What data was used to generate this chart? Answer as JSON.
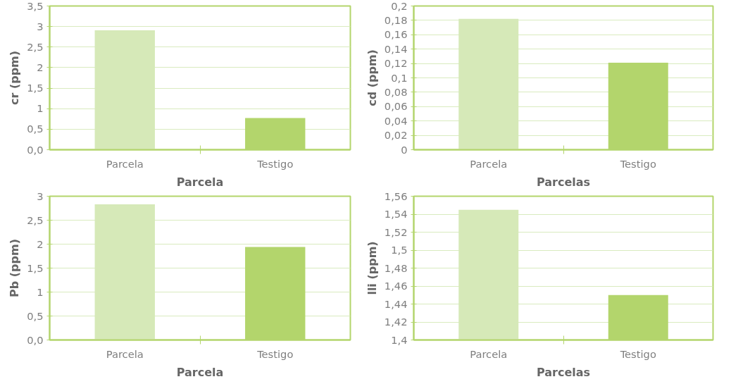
{
  "chart_data": [
    {
      "type": "bar",
      "categories": [
        "Parcela",
        "Testigo"
      ],
      "values": [
        2.91,
        0.77
      ],
      "colors": [
        "#d6e9b8",
        "#b3d56c"
      ],
      "xlabel": "Parcela",
      "ylabel": "cr (ppm)",
      "ylim": [
        0,
        3.5
      ],
      "yticks": [
        {
          "value": 0,
          "label": "0,0"
        },
        {
          "value": 0.5,
          "label": "0,5"
        },
        1,
        {
          "value": 1.5,
          "label": "1,5"
        },
        2,
        {
          "value": 2.5,
          "label": "2,5"
        },
        3,
        {
          "value": 3.5,
          "label": "3,5"
        }
      ],
      "grid": "y"
    },
    {
      "type": "bar",
      "categories": [
        "Parcela",
        "Testigo"
      ],
      "values": [
        0.182,
        0.121
      ],
      "colors": [
        "#d6e9b8",
        "#b3d56c"
      ],
      "xlabel": "Parcelas",
      "ylabel": "cd (ppm)",
      "ylim": [
        0,
        0.2
      ],
      "yticks": [
        0,
        {
          "value": 0.02,
          "label": "0,02"
        },
        {
          "value": 0.04,
          "label": "0,04"
        },
        {
          "value": 0.06,
          "label": "0,06"
        },
        {
          "value": 0.08,
          "label": "0,08"
        },
        {
          "value": 0.1,
          "label": "0,1"
        },
        {
          "value": 0.12,
          "label": "0,12"
        },
        {
          "value": 0.14,
          "label": "0,14"
        },
        {
          "value": 0.16,
          "label": "0,16"
        },
        {
          "value": 0.18,
          "label": "0,18"
        },
        {
          "value": 0.2,
          "label": "0,2"
        }
      ],
      "grid": "y"
    },
    {
      "type": "bar",
      "categories": [
        "Parcela",
        "Testigo"
      ],
      "values": [
        2.83,
        1.94
      ],
      "colors": [
        "#d6e9b8",
        "#b3d56c"
      ],
      "xlabel": "Parcela",
      "ylabel": "Pb (ppm)",
      "ylim": [
        0,
        3
      ],
      "yticks": [
        {
          "value": 0,
          "label": "0,0"
        },
        {
          "value": 0.5,
          "label": "0,5"
        },
        1,
        {
          "value": 1.5,
          "label": "1,5"
        },
        2,
        {
          "value": 2.5,
          "label": "2,5"
        },
        3
      ],
      "grid": "y"
    },
    {
      "type": "bar",
      "categories": [
        "Parcela",
        "Testigo"
      ],
      "values": [
        1.545,
        1.45
      ],
      "colors": [
        "#d6e9b8",
        "#b3d56c"
      ],
      "xlabel": "Parcelas",
      "ylabel": "lli (ppm)",
      "ylim": [
        1.4,
        1.56
      ],
      "yticks": [
        {
          "value": 1.4,
          "label": "1,4"
        },
        {
          "value": 1.42,
          "label": "1,42"
        },
        {
          "value": 1.44,
          "label": "1,44"
        },
        {
          "value": 1.46,
          "label": "1,46"
        },
        {
          "value": 1.48,
          "label": "1,48"
        },
        {
          "value": 1.5,
          "label": "1,5"
        },
        {
          "value": 1.52,
          "label": "1,52"
        },
        {
          "value": 1.54,
          "label": "1,54"
        },
        {
          "value": 1.56,
          "label": "1,56"
        }
      ],
      "grid": "y"
    }
  ]
}
